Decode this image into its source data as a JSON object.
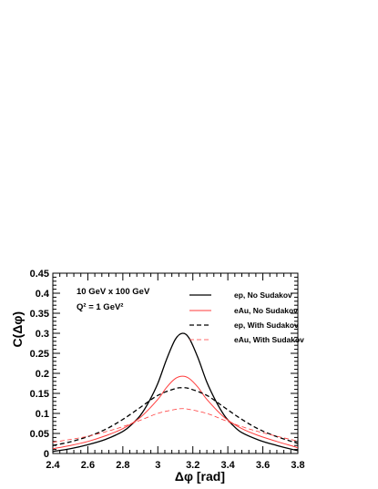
{
  "chart_data": {
    "type": "line",
    "xlabel": "Δφ [rad]",
    "ylabel": "C(Δφ)",
    "xlim": [
      2.4,
      3.8
    ],
    "ylim": [
      0,
      0.45
    ],
    "x_ticks": [
      "2.4",
      "2.6",
      "2.8",
      "3",
      "3.2",
      "3.4",
      "3.6",
      "3.8"
    ],
    "y_ticks": [
      "0",
      "0.05",
      "0.1",
      "0.15",
      "0.2",
      "0.25",
      "0.3",
      "0.35",
      "0.4",
      "0.45"
    ],
    "annotations": [
      "10 GeV x 100 GeV",
      "Q² = 1 GeV²"
    ],
    "legend_position": "top-right",
    "grid": false,
    "series": [
      {
        "name": "ep, No Sudakov",
        "color": "#000000",
        "dash": "solid",
        "x": [
          2.4,
          2.5,
          2.6,
          2.7,
          2.8,
          2.85,
          2.9,
          2.95,
          3.0,
          3.05,
          3.1,
          3.1416,
          3.18,
          3.23,
          3.28,
          3.33,
          3.38,
          3.43,
          3.48,
          3.58,
          3.68,
          3.78,
          3.8
        ],
        "y": [
          0.005,
          0.012,
          0.022,
          0.035,
          0.055,
          0.072,
          0.095,
          0.13,
          0.175,
          0.235,
          0.285,
          0.3,
          0.287,
          0.238,
          0.178,
          0.132,
          0.095,
          0.07,
          0.052,
          0.033,
          0.02,
          0.009,
          0.007
        ]
      },
      {
        "name": "eAu, No Sudakov",
        "color": "#ff3b3b",
        "dash": "solid",
        "x": [
          2.4,
          2.5,
          2.6,
          2.7,
          2.8,
          2.9,
          3.0,
          3.05,
          3.1,
          3.1416,
          3.18,
          3.23,
          3.28,
          3.38,
          3.48,
          3.58,
          3.68,
          3.78,
          3.8
        ],
        "y": [
          0.012,
          0.02,
          0.03,
          0.044,
          0.062,
          0.09,
          0.135,
          0.165,
          0.187,
          0.193,
          0.187,
          0.165,
          0.135,
          0.09,
          0.062,
          0.044,
          0.03,
          0.017,
          0.014
        ]
      },
      {
        "name": "ep, With Sudakov",
        "color": "#000000",
        "dash": "dashed",
        "x": [
          2.4,
          2.5,
          2.6,
          2.7,
          2.8,
          2.9,
          3.0,
          3.1,
          3.1416,
          3.18,
          3.28,
          3.38,
          3.48,
          3.58,
          3.68,
          3.78,
          3.8
        ],
        "y": [
          0.02,
          0.029,
          0.042,
          0.06,
          0.085,
          0.115,
          0.145,
          0.162,
          0.164,
          0.162,
          0.145,
          0.115,
          0.085,
          0.06,
          0.042,
          0.028,
          0.025
        ]
      },
      {
        "name": "eAu, With Sudakov",
        "color": "#ff3b3b",
        "dash": "dashed",
        "x": [
          2.4,
          2.5,
          2.6,
          2.7,
          2.8,
          2.9,
          3.0,
          3.1,
          3.1416,
          3.18,
          3.28,
          3.38,
          3.48,
          3.58,
          3.68,
          3.78,
          3.8
        ],
        "y": [
          0.028,
          0.035,
          0.043,
          0.054,
          0.067,
          0.083,
          0.1,
          0.11,
          0.112,
          0.11,
          0.1,
          0.083,
          0.067,
          0.054,
          0.043,
          0.033,
          0.031
        ]
      }
    ]
  }
}
